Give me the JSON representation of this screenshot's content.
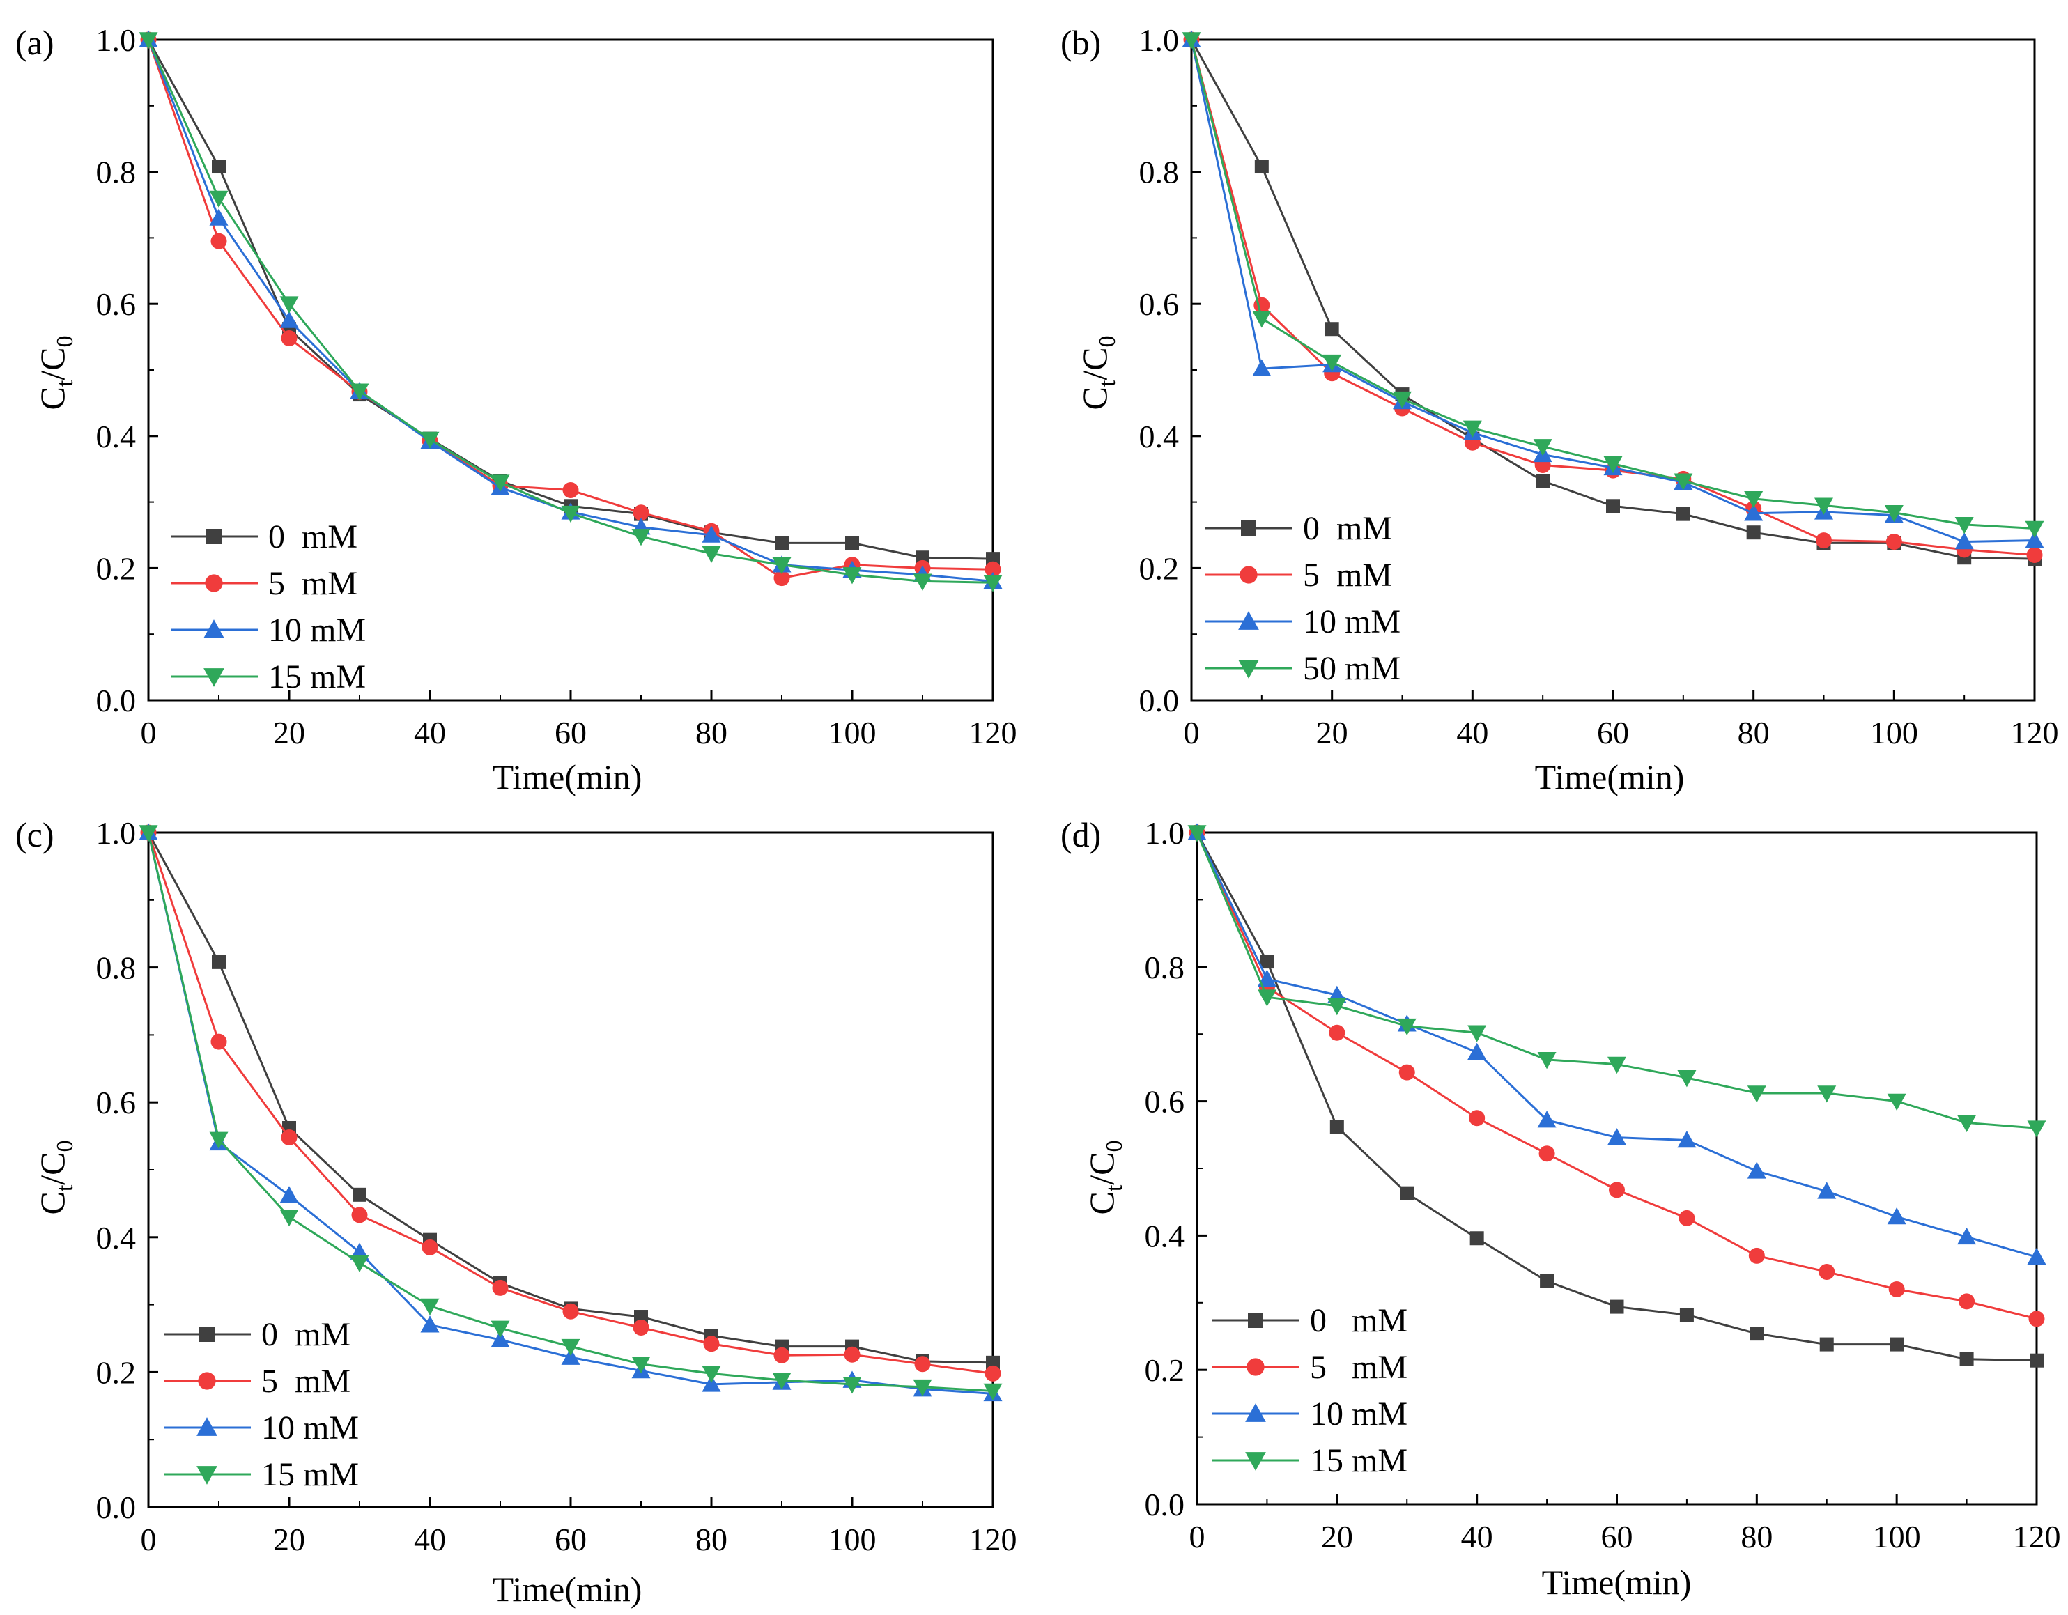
{
  "figure": {
    "panels": [
      {
        "label": "(a)",
        "ylabel_main": "C",
        "ylabel_sub1": "t",
        "ylabel_slash": "/C",
        "ylabel_sub2": "0",
        "xlabel": "Time(min)"
      },
      {
        "label": "(b)",
        "ylabel_main": "C",
        "ylabel_sub1": "t",
        "ylabel_slash": "/C",
        "ylabel_sub2": "0",
        "xlabel": "Time(min)"
      },
      {
        "label": "(c)",
        "ylabel_main": "C",
        "ylabel_sub1": "t",
        "ylabel_slash": "/C",
        "ylabel_sub2": "0",
        "xlabel": "Time(min)"
      },
      {
        "label": "(d)",
        "ylabel_main": "C",
        "ylabel_sub1": "t",
        "ylabel_slash": "/C",
        "ylabel_sub2": "0",
        "xlabel": "Time(min)"
      }
    ]
  },
  "chart_data": [
    {
      "type": "line",
      "panel": "(a)",
      "xlabel": "Time(min)",
      "ylabel": "Ct/C0",
      "xlim": [
        0,
        120
      ],
      "ylim": [
        0,
        1.0
      ],
      "xticks": [
        0,
        20,
        40,
        60,
        80,
        100,
        120
      ],
      "yticks": [
        0.0,
        0.2,
        0.4,
        0.6,
        0.8,
        1.0
      ],
      "legend_position": "bottom-left",
      "x": [
        0,
        10,
        20,
        30,
        40,
        50,
        60,
        70,
        80,
        90,
        100,
        110,
        120
      ],
      "series": [
        {
          "name": "0  mM",
          "color": "#404040",
          "marker": "square",
          "values": [
            1.0,
            0.808,
            0.562,
            0.463,
            0.396,
            0.332,
            0.294,
            0.282,
            0.254,
            0.238,
            0.238,
            0.216,
            0.214
          ]
        },
        {
          "name": "5  mM",
          "color": "#f03c3c",
          "marker": "circle",
          "values": [
            1.0,
            0.695,
            0.548,
            0.467,
            0.393,
            0.325,
            0.318,
            0.284,
            0.256,
            0.185,
            0.205,
            0.2,
            0.198
          ]
        },
        {
          "name": "10 mM",
          "color": "#2b6fd6",
          "marker": "triangle-up",
          "values": [
            1.0,
            0.73,
            0.575,
            0.468,
            0.392,
            0.322,
            0.285,
            0.262,
            0.25,
            0.205,
            0.197,
            0.19,
            0.18
          ]
        },
        {
          "name": "15 mM",
          "color": "#2fa85a",
          "marker": "triangle-down",
          "values": [
            1.0,
            0.76,
            0.6,
            0.468,
            0.395,
            0.33,
            0.283,
            0.248,
            0.222,
            0.205,
            0.19,
            0.18,
            0.178
          ]
        }
      ]
    },
    {
      "type": "line",
      "panel": "(b)",
      "xlabel": "Time(min)",
      "ylabel": "Ct/C0",
      "xlim": [
        0,
        120
      ],
      "ylim": [
        0,
        1.0
      ],
      "xticks": [
        0,
        20,
        40,
        60,
        80,
        100,
        120
      ],
      "yticks": [
        0.0,
        0.2,
        0.4,
        0.6,
        0.8,
        1.0
      ],
      "legend_position": "bottom-left",
      "x": [
        0,
        10,
        20,
        30,
        40,
        50,
        60,
        70,
        80,
        90,
        100,
        110,
        120
      ],
      "series": [
        {
          "name": "0  mM",
          "color": "#404040",
          "marker": "square",
          "values": [
            1.0,
            0.808,
            0.562,
            0.463,
            0.396,
            0.332,
            0.294,
            0.282,
            0.254,
            0.238,
            0.238,
            0.216,
            0.214
          ]
        },
        {
          "name": "5  mM",
          "color": "#f03c3c",
          "marker": "circle",
          "values": [
            1.0,
            0.598,
            0.495,
            0.442,
            0.39,
            0.356,
            0.348,
            0.335,
            0.29,
            0.242,
            0.24,
            0.228,
            0.22
          ]
        },
        {
          "name": "10 mM",
          "color": "#2b6fd6",
          "marker": "triangle-up",
          "values": [
            1.0,
            0.502,
            0.508,
            0.452,
            0.405,
            0.372,
            0.352,
            0.33,
            0.283,
            0.285,
            0.28,
            0.24,
            0.242
          ]
        },
        {
          "name": "50 mM",
          "color": "#2fa85a",
          "marker": "triangle-down",
          "values": [
            1.0,
            0.578,
            0.512,
            0.456,
            0.412,
            0.384,
            0.358,
            0.332,
            0.305,
            0.295,
            0.284,
            0.266,
            0.26
          ]
        }
      ]
    },
    {
      "type": "line",
      "panel": "(c)",
      "xlabel": "Time(min)",
      "ylabel": "Ct/C0",
      "xlim": [
        0,
        120
      ],
      "ylim": [
        0,
        1.0
      ],
      "xticks": [
        0,
        20,
        40,
        60,
        80,
        100,
        120
      ],
      "yticks": [
        0.0,
        0.2,
        0.4,
        0.6,
        0.8,
        1.0
      ],
      "legend_position": "bottom-left",
      "x": [
        0,
        10,
        20,
        30,
        40,
        50,
        60,
        70,
        80,
        90,
        100,
        110,
        120
      ],
      "series": [
        {
          "name": "0  mM",
          "color": "#404040",
          "marker": "square",
          "values": [
            1.0,
            0.808,
            0.562,
            0.463,
            0.396,
            0.332,
            0.294,
            0.282,
            0.254,
            0.238,
            0.238,
            0.216,
            0.214
          ]
        },
        {
          "name": "5  mM",
          "color": "#f03c3c",
          "marker": "circle",
          "values": [
            1.0,
            0.69,
            0.548,
            0.433,
            0.385,
            0.325,
            0.29,
            0.266,
            0.242,
            0.225,
            0.226,
            0.212,
            0.198
          ]
        },
        {
          "name": "10 mM",
          "color": "#2b6fd6",
          "marker": "triangle-up",
          "values": [
            1.0,
            0.54,
            0.462,
            0.378,
            0.27,
            0.248,
            0.222,
            0.202,
            0.182,
            0.185,
            0.188,
            0.175,
            0.168
          ]
        },
        {
          "name": "15 mM",
          "color": "#2fa85a",
          "marker": "triangle-down",
          "values": [
            1.0,
            0.545,
            0.43,
            0.362,
            0.298,
            0.265,
            0.238,
            0.212,
            0.198,
            0.188,
            0.182,
            0.178,
            0.172
          ]
        }
      ]
    },
    {
      "type": "line",
      "panel": "(d)",
      "xlabel": "Time(min)",
      "ylabel": "Ct/C0",
      "xlim": [
        0,
        120
      ],
      "ylim": [
        0,
        1.0
      ],
      "xticks": [
        0,
        20,
        40,
        60,
        80,
        100,
        120
      ],
      "yticks": [
        0.0,
        0.2,
        0.4,
        0.6,
        0.8,
        1.0
      ],
      "legend_position": "bottom-left",
      "x": [
        0,
        10,
        20,
        30,
        40,
        50,
        60,
        70,
        80,
        90,
        100,
        110,
        120
      ],
      "series": [
        {
          "name": "0   mM",
          "color": "#404040",
          "marker": "square",
          "values": [
            1.0,
            0.808,
            0.562,
            0.463,
            0.396,
            0.332,
            0.294,
            0.282,
            0.254,
            0.238,
            0.238,
            0.216,
            0.214
          ]
        },
        {
          "name": "5   mM",
          "color": "#f03c3c",
          "marker": "circle",
          "values": [
            1.0,
            0.77,
            0.702,
            0.643,
            0.575,
            0.522,
            0.468,
            0.426,
            0.37,
            0.346,
            0.32,
            0.302,
            0.276
          ]
        },
        {
          "name": "10 mM",
          "color": "#2b6fd6",
          "marker": "triangle-up",
          "values": [
            1.0,
            0.782,
            0.758,
            0.715,
            0.673,
            0.572,
            0.546,
            0.542,
            0.496,
            0.466,
            0.428,
            0.398,
            0.368
          ]
        },
        {
          "name": "15 mM",
          "color": "#2fa85a",
          "marker": "triangle-down",
          "values": [
            1.0,
            0.755,
            0.742,
            0.712,
            0.702,
            0.662,
            0.655,
            0.635,
            0.612,
            0.612,
            0.6,
            0.568,
            0.56
          ]
        }
      ]
    }
  ]
}
